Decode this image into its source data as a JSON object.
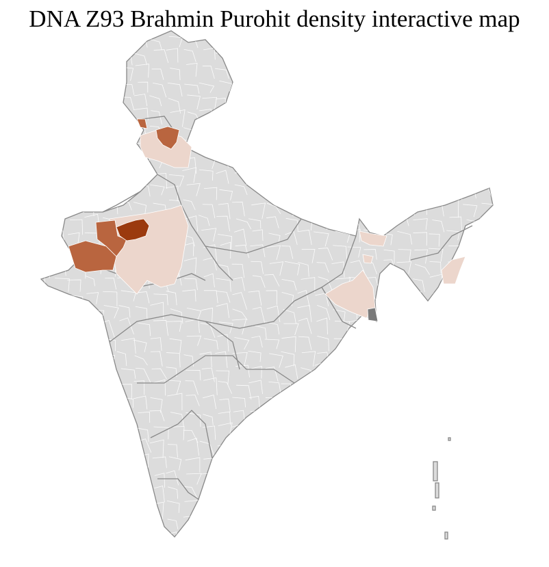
{
  "title": "DNA Z93 Brahmin Purohit density interactive map",
  "colors": {
    "background": "#ffffff",
    "land": "#dcdcdc",
    "district_border": "#ffffff",
    "state_border": "#888888",
    "density_low": "#ecd6cc",
    "density_medium": "#b9653f",
    "density_high": "#9b3a0e",
    "delta": "#7a7a7a"
  }
}
